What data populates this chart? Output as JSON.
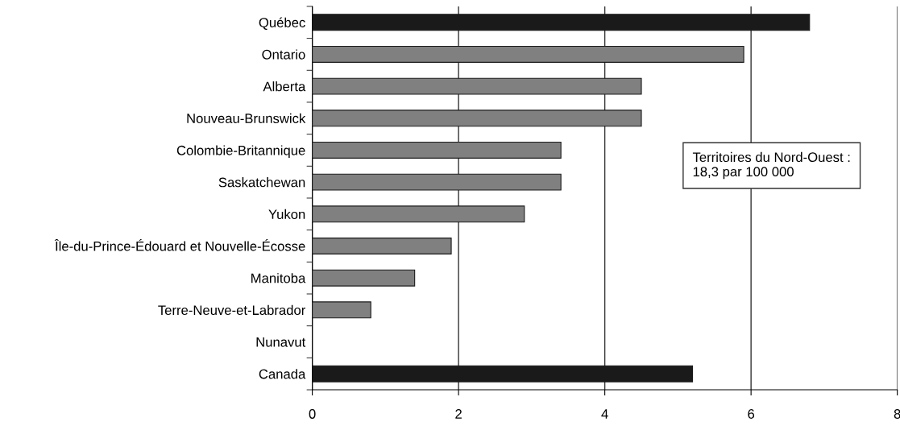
{
  "chart_data": {
    "type": "bar",
    "orientation": "horizontal",
    "categories": [
      "Québec",
      "Ontario",
      "Alberta",
      "Nouveau-Brunswick",
      "Colombie-Britannique",
      "Saskatchewan",
      "Yukon",
      "Île-du-Prince-Édouard et Nouvelle-Écosse",
      "Manitoba",
      "Terre-Neuve-et-Labrador",
      "Nunavut",
      "Canada"
    ],
    "values": [
      6.8,
      5.9,
      4.5,
      4.5,
      3.4,
      3.4,
      2.9,
      1.9,
      1.4,
      0.8,
      null,
      5.2
    ],
    "colors": [
      "#1a1a1a",
      "#808080",
      "#808080",
      "#808080",
      "#808080",
      "#808080",
      "#808080",
      "#808080",
      "#808080",
      "#808080",
      "#808080",
      "#1a1a1a"
    ],
    "xlim": [
      0,
      8
    ],
    "xticks": [
      0,
      2,
      4,
      6,
      8
    ],
    "grid": "x",
    "annotations": [
      "Territoires du Nord-Ouest :\n18,3 par 100 000"
    ]
  }
}
